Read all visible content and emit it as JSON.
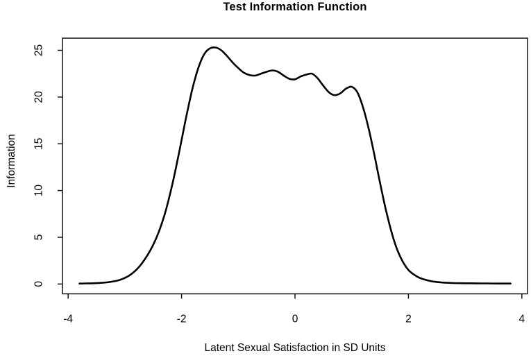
{
  "chart_data": {
    "type": "line",
    "title": "Test Information Function",
    "xlabel": "Latent Sexual Satisfaction in SD Units",
    "ylabel": "Information",
    "xlim": [
      -4.1,
      4.1
    ],
    "ylim": [
      -1.05,
      26.3
    ],
    "xticks": [
      -4,
      -2,
      0,
      2,
      4
    ],
    "yticks": [
      0,
      5,
      10,
      15,
      20,
      25
    ],
    "grid": false,
    "legend_position": "none",
    "line_color": "#000000",
    "background_color": "#ffffff",
    "box_color": "#111111",
    "annotations": {
      "peak": {
        "x": -1.4,
        "y": 25.3
      },
      "local_minima": [
        {
          "x": -0.75,
          "y": 22.3
        },
        {
          "x": -0.05,
          "y": 21.9
        },
        {
          "x": 0.65,
          "y": 20.2
        }
      ],
      "local_maxima": [
        {
          "x": -0.4,
          "y": 22.85
        },
        {
          "x": 0.27,
          "y": 22.5
        },
        {
          "x": 0.95,
          "y": 21.1
        }
      ]
    },
    "series": [
      {
        "name": "Test information",
        "x": [
          -3.8,
          -3.7,
          -3.6,
          -3.5,
          -3.4,
          -3.3,
          -3.2,
          -3.1,
          -3.0,
          -2.9,
          -2.8,
          -2.7,
          -2.6,
          -2.5,
          -2.4,
          -2.3,
          -2.2,
          -2.1,
          -2.0,
          -1.9,
          -1.8,
          -1.7,
          -1.6,
          -1.5,
          -1.4,
          -1.3,
          -1.2,
          -1.1,
          -1.0,
          -0.9,
          -0.8,
          -0.7,
          -0.6,
          -0.5,
          -0.4,
          -0.3,
          -0.2,
          -0.1,
          0.0,
          0.1,
          0.2,
          0.3,
          0.4,
          0.5,
          0.6,
          0.7,
          0.8,
          0.9,
          1.0,
          1.1,
          1.2,
          1.3,
          1.4,
          1.5,
          1.6,
          1.7,
          1.8,
          1.9,
          2.0,
          2.1,
          2.2,
          2.3,
          2.4,
          2.5,
          2.6,
          2.8,
          3.0,
          3.2,
          3.4,
          3.6,
          3.8
        ],
        "y": [
          0.05,
          0.06,
          0.07,
          0.09,
          0.13,
          0.19,
          0.28,
          0.42,
          0.65,
          1.0,
          1.5,
          2.2,
          3.1,
          4.2,
          5.6,
          7.4,
          9.7,
          12.4,
          15.4,
          18.4,
          21.1,
          23.2,
          24.6,
          25.2,
          25.3,
          25.0,
          24.4,
          23.7,
          23.1,
          22.6,
          22.35,
          22.3,
          22.5,
          22.7,
          22.85,
          22.7,
          22.3,
          21.95,
          21.9,
          22.2,
          22.4,
          22.5,
          22.0,
          21.2,
          20.5,
          20.2,
          20.4,
          20.9,
          21.1,
          20.5,
          18.9,
          16.6,
          13.8,
          10.8,
          8.0,
          5.6,
          3.7,
          2.4,
          1.5,
          1.0,
          0.65,
          0.45,
          0.3,
          0.22,
          0.16,
          0.1,
          0.08,
          0.07,
          0.06,
          0.05,
          0.05
        ]
      }
    ]
  },
  "layout_note": "R base-graphics style line plot, black curve on white, ticks outside box"
}
